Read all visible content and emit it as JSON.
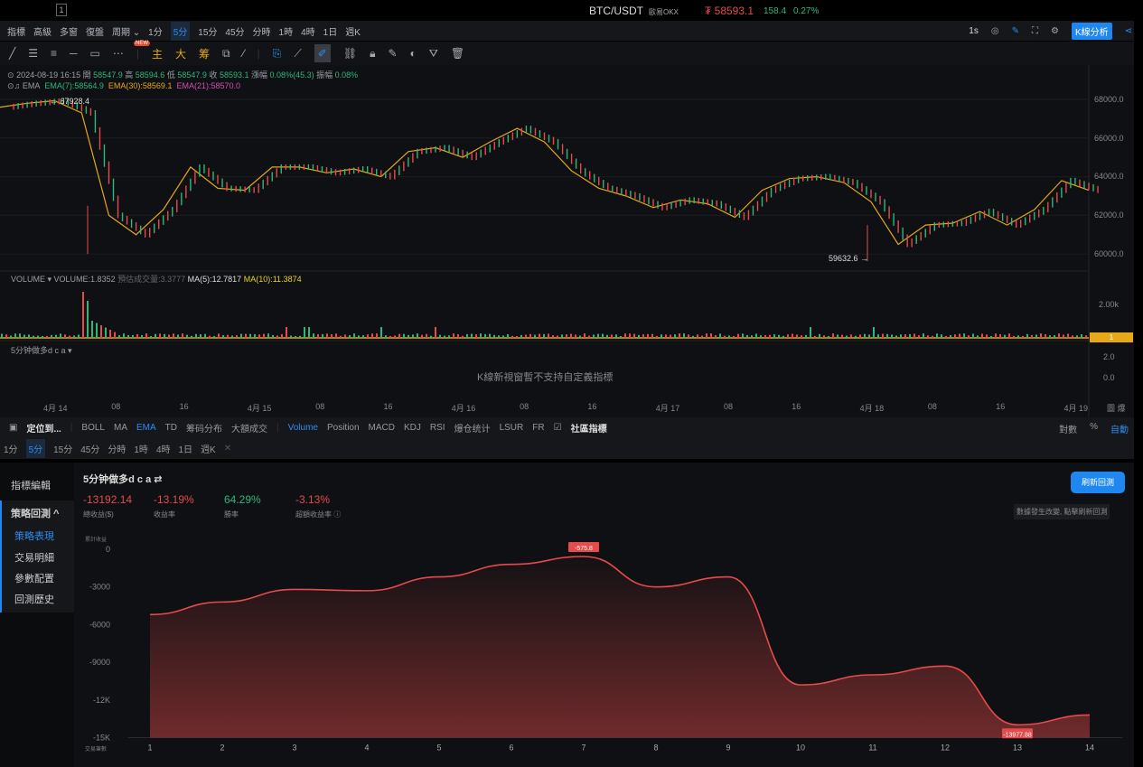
{
  "window": {
    "number": "1"
  },
  "ticker": {
    "symbol": "BTC/USDT",
    "exchange": "歐易OKX",
    "price": "₮ 58593.1",
    "change": "158.4",
    "change_pct": "0.27%"
  },
  "toolbar1": {
    "items": [
      "指標",
      "高級",
      "多窗",
      "復盤",
      "周期 ⌄"
    ],
    "periods": [
      "1分",
      "5分",
      "15分",
      "45分",
      "分時",
      "1時",
      "4時",
      "1日",
      "週K"
    ],
    "selected_period": "5分",
    "right": {
      "interval": "1s",
      "kline_analysis": "K線分析"
    }
  },
  "toolbar2": {
    "new_badge": "NEW",
    "labels": [
      "主",
      "大",
      "筹"
    ]
  },
  "ohlc": {
    "datetime": "2024-08-19 16:15",
    "open_label": "開",
    "open": "58547.9",
    "high_label": "高",
    "high": "58594.6",
    "low_label": "低",
    "low": "58547.9",
    "close_label": "收",
    "close": "58593.1",
    "chg_label": "漲幅",
    "chg": "0.08%(45.3)",
    "amp_label": "振幅",
    "amp": "0.08%"
  },
  "ema": {
    "name": "EMA",
    "ema7": "EMA(7):58564.9",
    "ema30": "EMA(30):58569.1",
    "ema21": "EMA(21):58570.0"
  },
  "volume": {
    "name": "VOLUME",
    "value": "VOLUME:1.8352",
    "est": "預估成交量:3.3777",
    "ma5": "MA(5):12.7817",
    "ma10": "MA(10):11.3874",
    "axis": "2.00k",
    "badge": "1"
  },
  "custom_indicator": {
    "name": "5分钟做多d c a",
    "message": "K線新視窗暫不支持自定義指標",
    "axis": [
      "2.0",
      "0.0"
    ]
  },
  "price_chart": {
    "high_mark": "67928.4",
    "low_mark": "59632.6",
    "yticks": [
      "68000.0",
      "66000.0",
      "64000.0",
      "62000.0",
      "60000.0"
    ],
    "xticks": [
      "4月 14",
      "08",
      "16",
      "4月 15",
      "08",
      "16",
      "4月 16",
      "08",
      "16",
      "4月 17",
      "08",
      "16",
      "4月 18",
      "08",
      "16",
      "4月 19"
    ],
    "corner": "圖 爆",
    "closes": [
      67600,
      67800,
      67928,
      67300,
      62000,
      61000,
      62300,
      64500,
      63400,
      63300,
      64500,
      64500,
      64200,
      64400,
      64000,
      65300,
      65500,
      65000,
      65800,
      66500,
      65800,
      64300,
      63400,
      63000,
      62400,
      62800,
      62600,
      61900,
      63300,
      63900,
      64000,
      63700,
      62700,
      60500,
      61500,
      61600,
      62200,
      61500,
      62300,
      63800,
      63300
    ]
  },
  "toolbar3": {
    "locate": "定位到...",
    "main": [
      "BOLL",
      "MA",
      "EMA",
      "TD",
      "筹码分布",
      "大額成交"
    ],
    "active_main": "EMA",
    "sub": [
      "Volume",
      "Position",
      "MACD",
      "KDJ",
      "RSI",
      "爆仓统计",
      "LSUR",
      "FR"
    ],
    "active_sub": "Volume",
    "community": "社區指標",
    "right": [
      "對數",
      "%",
      "自動"
    ]
  },
  "toolbar4": {
    "periods": [
      "1分",
      "5分",
      "15分",
      "45分",
      "分時",
      "1時",
      "4時",
      "1日",
      "週K"
    ],
    "selected": "5分",
    "close": "✕"
  },
  "sidebar": {
    "items": [
      "指標編輯",
      "策略回測 ^",
      "策略表現",
      "交易明細",
      "參數配置",
      "回測歷史"
    ]
  },
  "backtest": {
    "title": "5分钟做多d c a ⇄",
    "stats": [
      {
        "value": "-13192.14",
        "label": "總收益($)"
      },
      {
        "value": "-13.19%",
        "label": "收益率"
      },
      {
        "value": "64.29%",
        "label": "勝率"
      },
      {
        "value": "-3.13%",
        "label": "超額收益率 ⓘ"
      }
    ],
    "refresh": "刷新回測",
    "hint": "數據發生改變, 點擊刷新回測"
  },
  "chart_data": {
    "type": "area",
    "ylabel": "累計收益",
    "xlabel": "交易筆數",
    "x": [
      1,
      2,
      3,
      4,
      5,
      6,
      7,
      8,
      9,
      10,
      11,
      12,
      13,
      14
    ],
    "values": [
      -5200,
      -4200,
      -3200,
      -3300,
      -2200,
      -1200,
      -575.8,
      -3000,
      -2200,
      -10800,
      -10000,
      -9300,
      -13977.88,
      -13200
    ],
    "yticks": [
      "0",
      "-3000",
      "-6000",
      "-9000",
      "-12K",
      "-15K"
    ],
    "ylim": [
      -15000,
      0
    ],
    "max_label": "-575.8",
    "min_label": "-13977.88",
    "color": "#e64a4a"
  }
}
